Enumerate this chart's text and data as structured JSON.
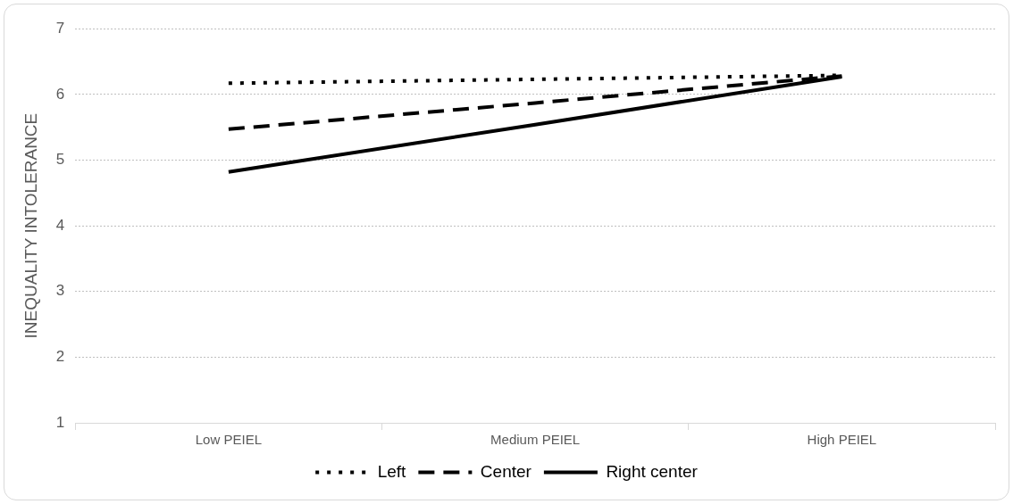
{
  "chart_data": {
    "type": "line",
    "ylabel": "INEQUALITY INTOLERANCE",
    "categories": [
      "Low PEIEL",
      "Medium PEIEL",
      "High PEIEL"
    ],
    "series": [
      {
        "name": "Left",
        "color": "#000000",
        "line_style": "dotted",
        "values": [
          6.17,
          6.23,
          6.29
        ]
      },
      {
        "name": "Center",
        "color": "#000000",
        "line_style": "dashed",
        "values": [
          5.47,
          5.87,
          6.28
        ]
      },
      {
        "name": "Right center",
        "color": "#000000",
        "line_style": "solid",
        "values": [
          4.82,
          5.54,
          6.27
        ]
      }
    ],
    "ylim": [
      1,
      7
    ],
    "yticks": [
      1,
      2,
      3,
      4,
      5,
      6,
      7
    ],
    "grid": "y",
    "legend": "bottom",
    "marker": "none"
  }
}
